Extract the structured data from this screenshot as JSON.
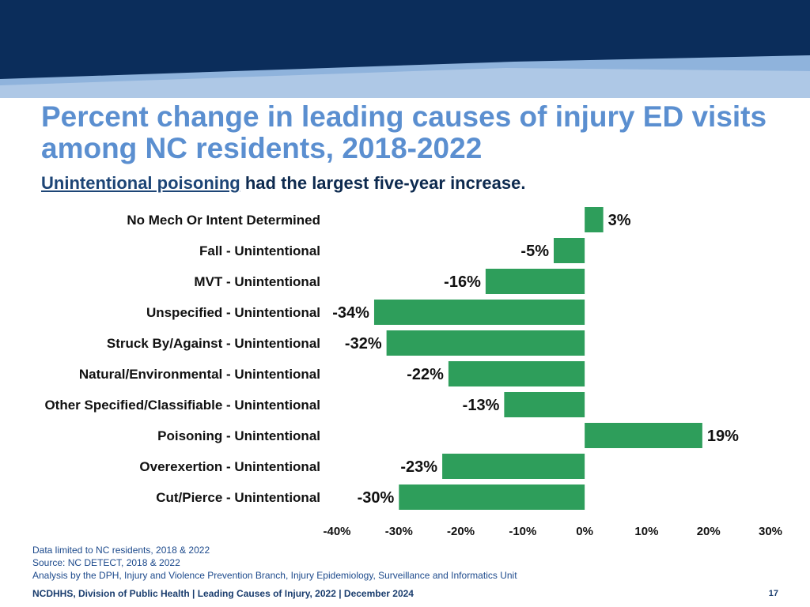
{
  "colors": {
    "banner_dark": "#0b2d5b",
    "banner_light": "#8fb3dc",
    "title": "#5b8fd0",
    "bar": "#2e9e5b"
  },
  "slide": {
    "title": "Percent change in leading causes of injury ED visits among NC residents, 2018-2022",
    "subtitle_highlight": "Unintentional poisoning",
    "subtitle_rest": " had the largest five-year increase.",
    "notes": [
      "Data limited to NC residents, 2018 & 2022",
      "Source: NC DETECT, 2018 & 2022",
      "Analysis by the DPH, Injury and Violence Prevention Branch, Injury Epidemiology, Surveillance and Informatics Unit"
    ],
    "footer": "NCDHHS, Division of Public Health | Leading Causes of Injury, 2022 | December 2024",
    "page_number": "17"
  },
  "chart_data": {
    "type": "bar",
    "orientation": "horizontal",
    "title": "",
    "xlabel": "",
    "ylabel": "",
    "categories": [
      "No Mech Or Intent Determined",
      "Fall - Unintentional",
      "MVT - Unintentional",
      "Unspecified - Unintentional",
      "Struck By/Against - Unintentional",
      "Natural/Environmental - Unintentional",
      "Other Specified/Classifiable - Unintentional",
      "Poisoning - Unintentional",
      "Overexertion - Unintentional",
      "Cut/Pierce - Unintentional"
    ],
    "values": [
      3,
      -5,
      -16,
      -34,
      -32,
      -22,
      -13,
      19,
      -23,
      -30
    ],
    "value_labels": [
      "3%",
      "-5%",
      "-16%",
      "-34%",
      "-32%",
      "-22%",
      "-13%",
      "19%",
      "-23%",
      "-30%"
    ],
    "xlim": [
      -40,
      30
    ],
    "ticks": [
      -40,
      -30,
      -20,
      -10,
      0,
      10,
      20,
      30
    ],
    "tick_labels": [
      "-40%",
      "-30%",
      "-20%",
      "-10%",
      "0%",
      "10%",
      "20%",
      "30%"
    ],
    "grid": false,
    "legend": "none"
  }
}
